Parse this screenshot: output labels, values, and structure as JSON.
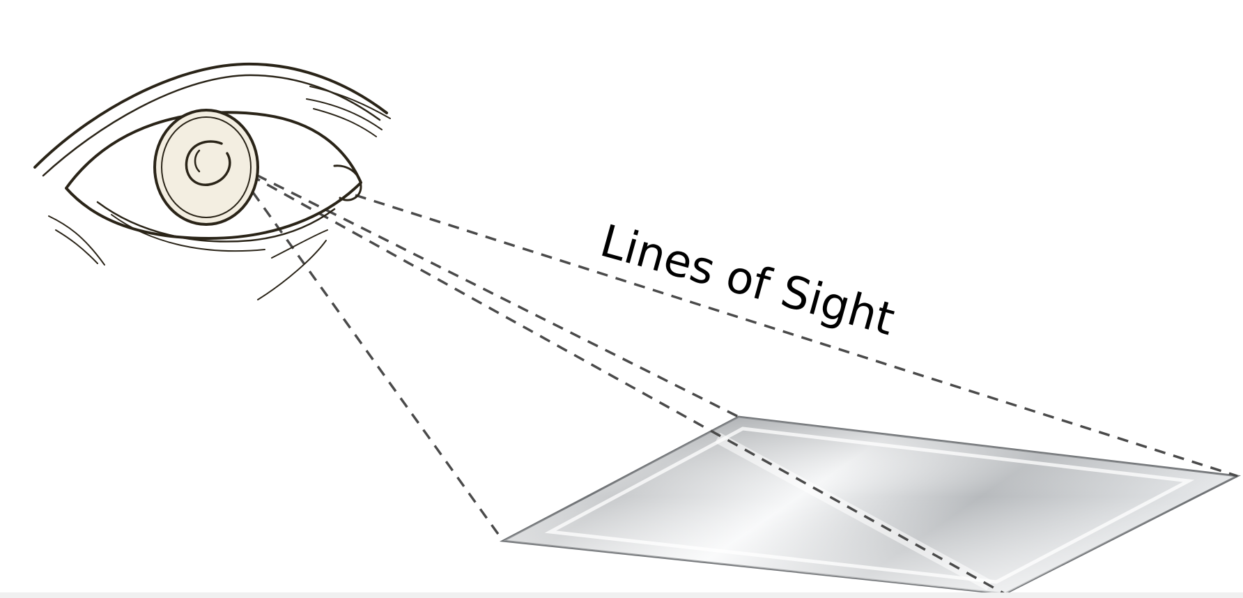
{
  "diagram": {
    "label": "Lines of Sight",
    "colors": {
      "background": "#ffffff",
      "line": "#4a4a4a",
      "eye_outline": "#2a2418",
      "eye_fill": "#f7f3e8",
      "surface_light": "#f4f5f6",
      "surface_dark": "#a9acaf"
    },
    "elements": {
      "eye": "eye-illustration",
      "surface": "reflective-flat-surface",
      "lines": "dashed-lines-of-sight"
    }
  }
}
